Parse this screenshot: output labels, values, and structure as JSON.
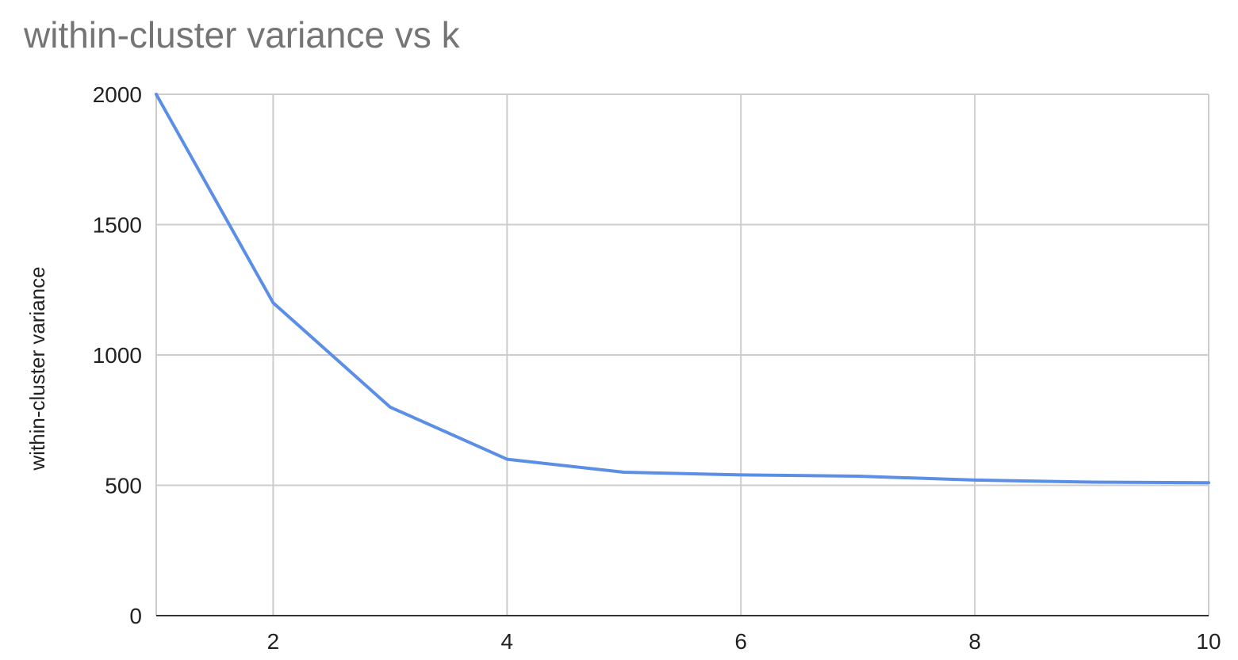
{
  "chart_data": {
    "type": "line",
    "title": "within-cluster variance vs k",
    "xlabel": "",
    "ylabel": "within-cluster variance",
    "x": [
      1,
      2,
      3,
      4,
      5,
      6,
      7,
      8,
      9,
      10
    ],
    "series": [
      {
        "values": [
          2000,
          1200,
          800,
          600,
          550,
          540,
          535,
          520,
          512,
          510
        ],
        "color": "#5b8ee6"
      }
    ],
    "xlim": [
      1,
      10
    ],
    "ylim": [
      0,
      2000
    ],
    "x_ticks": [
      2,
      4,
      6,
      8,
      10
    ],
    "x_tick_labels": [
      "2",
      "4",
      "6",
      "8",
      "10"
    ],
    "y_ticks": [
      0,
      500,
      1000,
      1500,
      2000
    ],
    "y_tick_labels": [
      "0",
      "500",
      "1000",
      "1500",
      "2000"
    ],
    "grid": true,
    "legend": "none"
  }
}
